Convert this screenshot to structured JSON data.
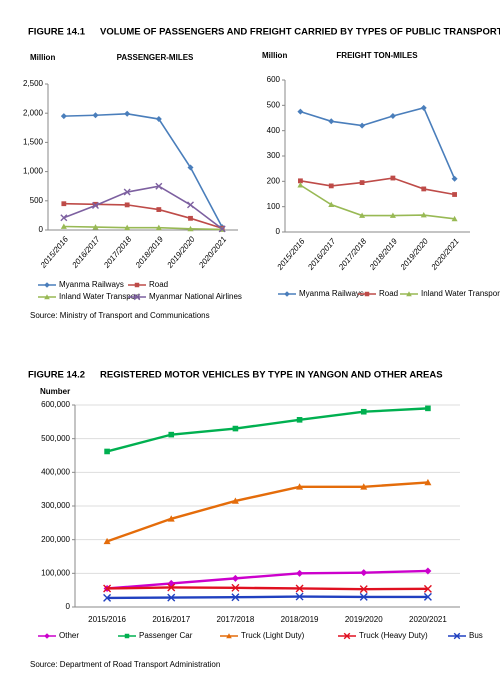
{
  "figures": [
    {
      "label": "FIGURE 14.1",
      "title": "VOLUME OF PASSENGERS AND FREIGHT CARRIED BY TYPES OF PUBLIC TRANSPORT",
      "source": "Source: Ministry of Transport and Communications"
    },
    {
      "label": "FIGURE 14.2",
      "title": "REGISTERED MOTOR VEHICLES BY TYPE IN YANGON AND OTHER AREAS",
      "source": "Source: Department of Road Transport Administration"
    }
  ],
  "chart_data": [
    {
      "type": "line",
      "title": "PASSENGER-MILES",
      "y_label": "Million",
      "categories": [
        "2015/2016",
        "2016/2017",
        "2017/2018",
        "2018/2019",
        "2019/2020",
        "2020/2021"
      ],
      "ylim": [
        0,
        2500
      ],
      "yticks": [
        0,
        500,
        {
          "value": 1000,
          "label": "1,000"
        },
        {
          "value": 1500,
          "label": "1,500"
        },
        {
          "value": 2000,
          "label": "2,000"
        },
        {
          "value": 2500,
          "label": "2,500"
        }
      ],
      "grid": false,
      "series": [
        {
          "name": "Myanma Railways",
          "color": "#4a7ebb",
          "marker": "diamond",
          "values": [
            1950,
            1965,
            1990,
            1900,
            1070,
            50
          ]
        },
        {
          "name": "Road",
          "color": "#be4b48",
          "marker": "square",
          "values": [
            450,
            440,
            430,
            350,
            200,
            30
          ]
        },
        {
          "name": "Inland Water Transport",
          "color": "#98b954",
          "marker": "triangle",
          "values": [
            60,
            50,
            40,
            40,
            20,
            10
          ]
        },
        {
          "name": "Myanmar National Airlines",
          "color": "#7d60a0",
          "marker": "x",
          "values": [
            210,
            420,
            650,
            750,
            430,
            20
          ]
        }
      ]
    },
    {
      "type": "line",
      "title": "FREIGHT TON-MILES",
      "y_label": "Million",
      "categories": [
        "2015/2016",
        "2016/2017",
        "2017/2018",
        "2018/2019",
        "2019/2020",
        "2020/2021"
      ],
      "ylim": [
        0,
        600
      ],
      "yticks": [
        0,
        100,
        200,
        300,
        400,
        500,
        600
      ],
      "grid": false,
      "series": [
        {
          "name": "Myanma Railways",
          "color": "#4a7ebb",
          "marker": "diamond",
          "values": [
            475,
            437,
            420,
            458,
            490,
            210
          ]
        },
        {
          "name": "Road",
          "color": "#be4b48",
          "marker": "square",
          "values": [
            202,
            182,
            195,
            213,
            170,
            148
          ]
        },
        {
          "name": "Inland Water Transport",
          "color": "#98b954",
          "marker": "triangle",
          "values": [
            185,
            108,
            65,
            65,
            67,
            52
          ]
        }
      ]
    },
    {
      "type": "line",
      "y_label": "Number",
      "categories": [
        "2015/2016",
        "2016/2017",
        "2017/2018",
        "2018/2019",
        "2019/2020",
        "2020/2021"
      ],
      "ylim": [
        0,
        600000
      ],
      "yticks": [
        0,
        {
          "value": 100000,
          "label": "100,000"
        },
        {
          "value": 200000,
          "label": "200,000"
        },
        {
          "value": 300000,
          "label": "300,000"
        },
        {
          "value": 400000,
          "label": "400,000"
        },
        {
          "value": 500000,
          "label": "500,000"
        },
        {
          "value": 600000,
          "label": "600,000"
        }
      ],
      "grid": true,
      "series": [
        {
          "name": "Other",
          "color": "#cc00cc",
          "marker": "diamond",
          "values": [
            55000,
            70000,
            85000,
            100000,
            102000,
            107000
          ]
        },
        {
          "name": "Passenger Car",
          "color": "#00b050",
          "marker": "square",
          "values": [
            462000,
            512000,
            530000,
            556000,
            580000,
            590000
          ]
        },
        {
          "name": "Truck (Light Duty)",
          "color": "#e46c0a",
          "marker": "triangle",
          "values": [
            195000,
            262000,
            315000,
            357000,
            357000,
            370000
          ]
        },
        {
          "name": "Truck (Heavy Duty)",
          "color": "#e01020",
          "marker": "x",
          "values": [
            55000,
            58000,
            57000,
            55000,
            53000,
            54000
          ]
        },
        {
          "name": "Bus",
          "color": "#2040c0",
          "marker": "x",
          "values": [
            27000,
            28000,
            29000,
            31000,
            30000,
            30000
          ]
        }
      ]
    }
  ]
}
